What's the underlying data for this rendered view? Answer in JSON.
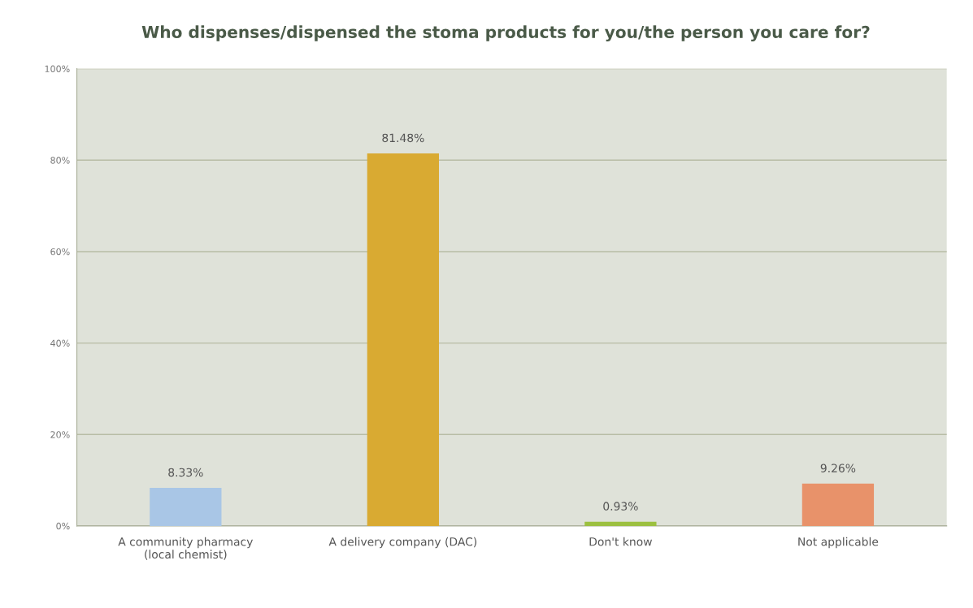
{
  "chart_data": {
    "type": "bar",
    "title": "Who dispenses/dispensed the stoma products for you/the person you care for?",
    "categories": [
      "A community pharmacy\n(local chemist)",
      "A delivery company (DAC)",
      "Don't know",
      "Not applicable"
    ],
    "values": [
      8.33,
      81.48,
      0.93,
      9.26
    ],
    "colors": [
      "#a9c6e6",
      "#d9aa32",
      "#9cc040",
      "#e8926a"
    ],
    "value_labels": [
      "8.33%",
      "81.48%",
      "0.93%",
      "9.26%"
    ],
    "ylim": [
      0,
      100
    ],
    "yticks": [
      {
        "value": 0,
        "label": "0%"
      },
      {
        "value": 20,
        "label": "20%"
      },
      {
        "value": 40,
        "label": "40%"
      },
      {
        "value": 60,
        "label": "60%"
      },
      {
        "value": 80,
        "label": "80%"
      },
      {
        "value": 100,
        "label": "100%"
      }
    ],
    "grid": "y",
    "legend": false
  }
}
